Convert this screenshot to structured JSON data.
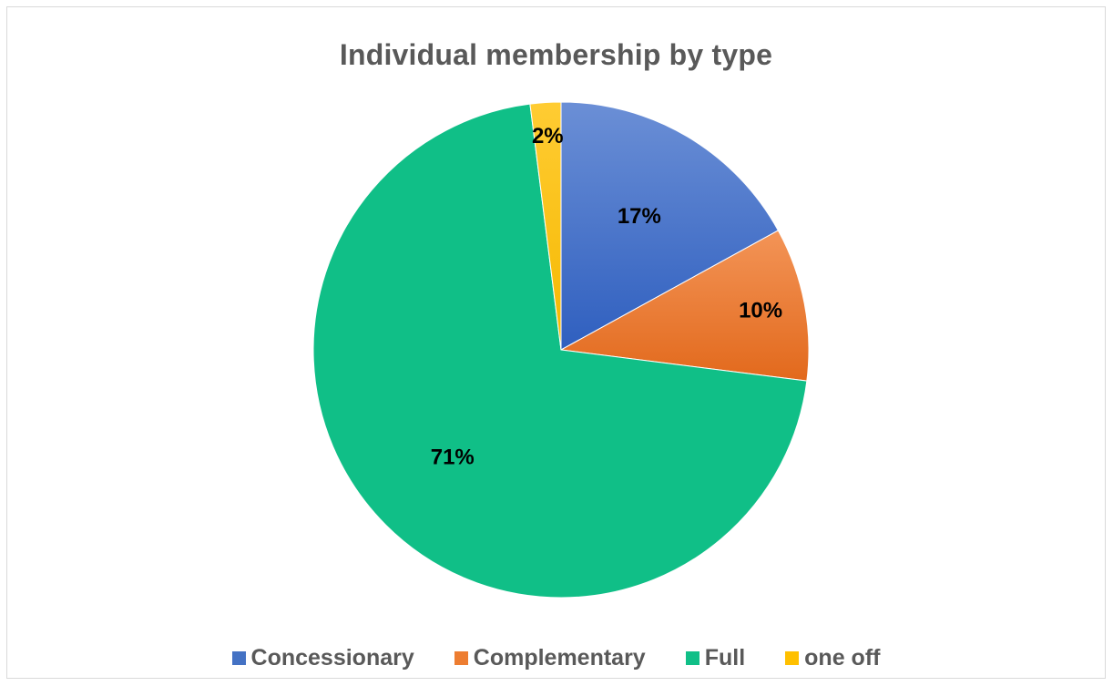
{
  "chart_data": {
    "type": "pie",
    "title": "Individual membership by type",
    "categories": [
      "Concessionary",
      "Complementary",
      "Full",
      "one off"
    ],
    "values": [
      17,
      10,
      71,
      2
    ],
    "data_labels": [
      "17%",
      "10%",
      "71%",
      "2%"
    ],
    "colors": [
      "#4472c4",
      "#ed7d31",
      "#10bf87",
      "#ffc000"
    ],
    "legend_position": "bottom"
  }
}
